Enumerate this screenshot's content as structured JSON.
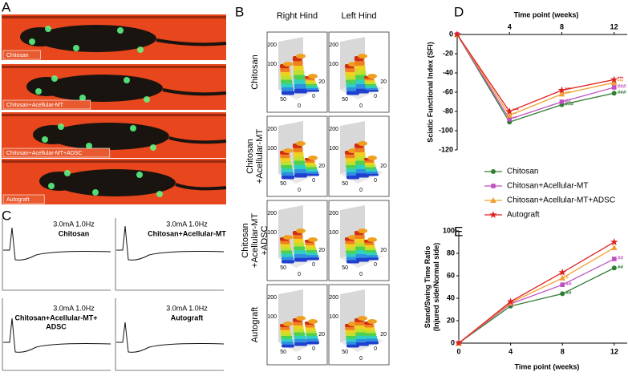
{
  "panel_labels": [
    "A",
    "B",
    "C",
    "D",
    "E"
  ],
  "panel_a": {
    "captions": [
      "Chitosan",
      "Chitosan+Acellular-MT",
      "Chitosan+Acellular-MT+ADSC",
      "Autograft"
    ]
  },
  "panel_b": {
    "columns": [
      "Right Hind",
      "Left Hind"
    ],
    "rows": [
      [
        "Chitosan"
      ],
      [
        "Chitosan",
        "+Acellular-MT"
      ],
      [
        "Chitosan",
        "+Acellular-MT",
        "+ADSC"
      ],
      [
        "Autograft"
      ]
    ],
    "tick_labels": [
      "200",
      "100",
      "50",
      "0",
      "20",
      "0"
    ]
  },
  "panel_c": {
    "stimulus": "3.0mA  1.0Hz",
    "groups": [
      [
        "Chitosan"
      ],
      [
        "Chitosan+Acellular-MT"
      ],
      [
        "Chitosan+Acellular-MT+",
        "ADSC"
      ],
      [
        "Autograft"
      ]
    ]
  },
  "chart_data": [
    {
      "type": "line",
      "xlabel": "Time point (weeks)",
      "ylabel": [
        "Sciatic Functional Index (SFI)"
      ],
      "xaxis_side": "top",
      "x": [
        0,
        4,
        8,
        12
      ],
      "xlim": [
        0,
        13
      ],
      "xticks": [
        4,
        8,
        12
      ],
      "ylim": [
        -120,
        0
      ],
      "yticks": [
        0,
        -20,
        -40,
        -60,
        -80,
        -100,
        -120
      ],
      "series": [
        {
          "name": "Chitosan",
          "color": "#2e7d32",
          "marker": "circle",
          "values": [
            0,
            -91,
            -73,
            -61
          ],
          "annotations": [
            null,
            null,
            "###",
            "###"
          ]
        },
        {
          "name": "Chitosan+Acellular-MT",
          "color": "#c050c0",
          "marker": "square",
          "values": [
            0,
            -88,
            -70,
            -55
          ],
          "annotations": [
            null,
            "**",
            "##",
            "###"
          ]
        },
        {
          "name": "Chitosan+Acellular-MT+ADSC",
          "color": "#f0a030",
          "marker": "triangle",
          "values": [
            0,
            -84,
            -62,
            -50
          ],
          "annotations": [
            null,
            "**",
            "***",
            "***"
          ]
        },
        {
          "name": "Autograft",
          "color": "#e02020",
          "marker": "star",
          "values": [
            0,
            -80,
            -58,
            -47
          ],
          "annotations": [
            null,
            "***",
            "***",
            "***"
          ]
        }
      ]
    },
    {
      "type": "line",
      "xlabel": "Time point (weeks)",
      "ylabel": [
        "Stand/Swing Time Ratio",
        "(Injured side/Normal side)"
      ],
      "xaxis_side": "bottom",
      "x": [
        0,
        4,
        8,
        12
      ],
      "xlim": [
        0,
        13
      ],
      "xticks": [
        0,
        4,
        8,
        12
      ],
      "ylim": [
        0,
        100
      ],
      "yticks": [
        0,
        20,
        40,
        60,
        80,
        100
      ],
      "series": [
        {
          "color": "#2e7d32",
          "marker": "circle",
          "values": [
            0,
            33,
            44,
            67
          ],
          "annotations": [
            null,
            null,
            "##",
            "##"
          ]
        },
        {
          "color": "#c050c0",
          "marker": "square",
          "values": [
            0,
            35,
            52,
            75
          ],
          "annotations": [
            null,
            null,
            "##",
            "##"
          ]
        },
        {
          "color": "#f0a030",
          "marker": "triangle",
          "values": [
            0,
            36,
            58,
            85
          ],
          "annotations": [
            null,
            null,
            "#",
            null
          ]
        },
        {
          "color": "#e02020",
          "marker": "star",
          "values": [
            0,
            37,
            63,
            90
          ],
          "annotations": [
            null,
            null,
            null,
            null
          ]
        }
      ]
    }
  ]
}
